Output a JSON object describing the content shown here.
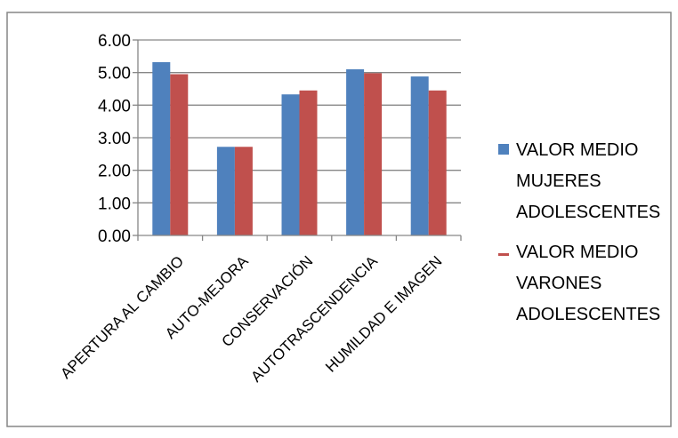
{
  "chart_data": {
    "type": "bar",
    "title": "",
    "xlabel": "",
    "ylabel": "",
    "ylim": [
      0,
      6
    ],
    "yticks": [
      "0.00",
      "1.00",
      "2.00",
      "3.00",
      "4.00",
      "5.00",
      "6.00"
    ],
    "grid": true,
    "legend_position": "right",
    "categories": [
      "APERTURA AL CAMBIO",
      "AUTO-MEJORA",
      "CONSERVACIÓN",
      "AUTOTRASCENDENCIA",
      "HUMILDAD E IMAGEN"
    ],
    "series": [
      {
        "name": "VALOR MEDIO MUJERES ADOLESCENTES",
        "legend_lines": [
          "VALOR MEDIO",
          "MUJERES",
          "ADOLESCENTES"
        ],
        "color": "#4f81bd",
        "values": [
          5.32,
          2.72,
          4.33,
          5.1,
          4.88
        ]
      },
      {
        "name": "VALOR MEDIO VARONES ADOLESCENTES",
        "legend_lines": [
          "VALOR MEDIO",
          "VARONES",
          "ADOLESCENTES"
        ],
        "color": "#c0504d",
        "values": [
          4.95,
          2.72,
          4.45,
          4.98,
          4.45
        ]
      }
    ]
  }
}
